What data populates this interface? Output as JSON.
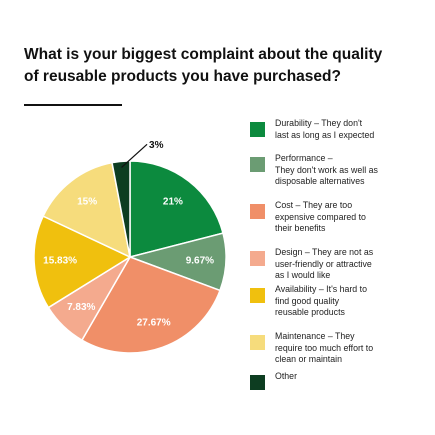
{
  "title_line1": "What is your biggest complaint about the quality",
  "title_line2": "of reusable products you have purchased?",
  "chart_data": {
    "type": "pie",
    "title": "What is your biggest complaint about the quality of reusable products you have purchased?",
    "slices": [
      {
        "label": "Durability – They don't last as long as I expected",
        "value": 21,
        "value_label": "21%",
        "color": "#0c8a3e",
        "label_color": "#ffffff"
      },
      {
        "label": "Performance – They don't work as well as disposable alternatives",
        "value": 9.67,
        "value_label": "9.67%",
        "color": "#6b9c73",
        "label_color": "#ffffff"
      },
      {
        "label": "Cost – They are too expensive compared to their benefits",
        "value": 27.67,
        "value_label": "27.67%",
        "color": "#f08f68",
        "label_color": "#ffffff"
      },
      {
        "label": "Design – They are not as user-friendly or attractive as I would like",
        "value": 7.83,
        "value_label": "7.83%",
        "color": "#f4aa8e",
        "label_color": "#ffffff"
      },
      {
        "label": "Availability – It's hard to find good quality reusable products",
        "value": 15.83,
        "value_label": "15.83%",
        "color": "#f0c00e",
        "label_color": "#ffffff"
      },
      {
        "label": "Maintenance – They require too much effort to clean or maintain",
        "value": 15,
        "value_label": "15%",
        "color": "#f6dc7c",
        "label_color": "#ffffff"
      },
      {
        "label": "Other",
        "value": 3,
        "value_label": "3%",
        "color": "#0d3d21",
        "label_color": "#111111"
      }
    ],
    "start": "12 o'clock",
    "direction": "clockwise",
    "legend_position": "right"
  },
  "legend": [
    {
      "lines": [
        "Durability – They don't",
        "last as long as I expected"
      ],
      "color": "#0c8a3e"
    },
    {
      "lines": [
        "Performance –",
        "They don't work as well as",
        "disposable alternatives"
      ],
      "color": "#6b9c73"
    },
    {
      "lines": [
        "Cost – They are too",
        "expensive compared to",
        "their benefits"
      ],
      "color": "#f08f68"
    },
    {
      "lines": [
        "Design – They are not as",
        "user-friendly or attractive",
        "as I would like"
      ],
      "color": "#f4aa8e"
    },
    {
      "lines": [
        "Availability – It's hard to",
        "find good quality",
        "reusable products"
      ],
      "color": "#f0c00e"
    },
    {
      "lines": [
        "Maintenance – They",
        "require too much effort to",
        "clean or maintain"
      ],
      "color": "#f6dc7c"
    },
    {
      "lines": [
        "Other"
      ],
      "color": "#0d3d21"
    }
  ]
}
